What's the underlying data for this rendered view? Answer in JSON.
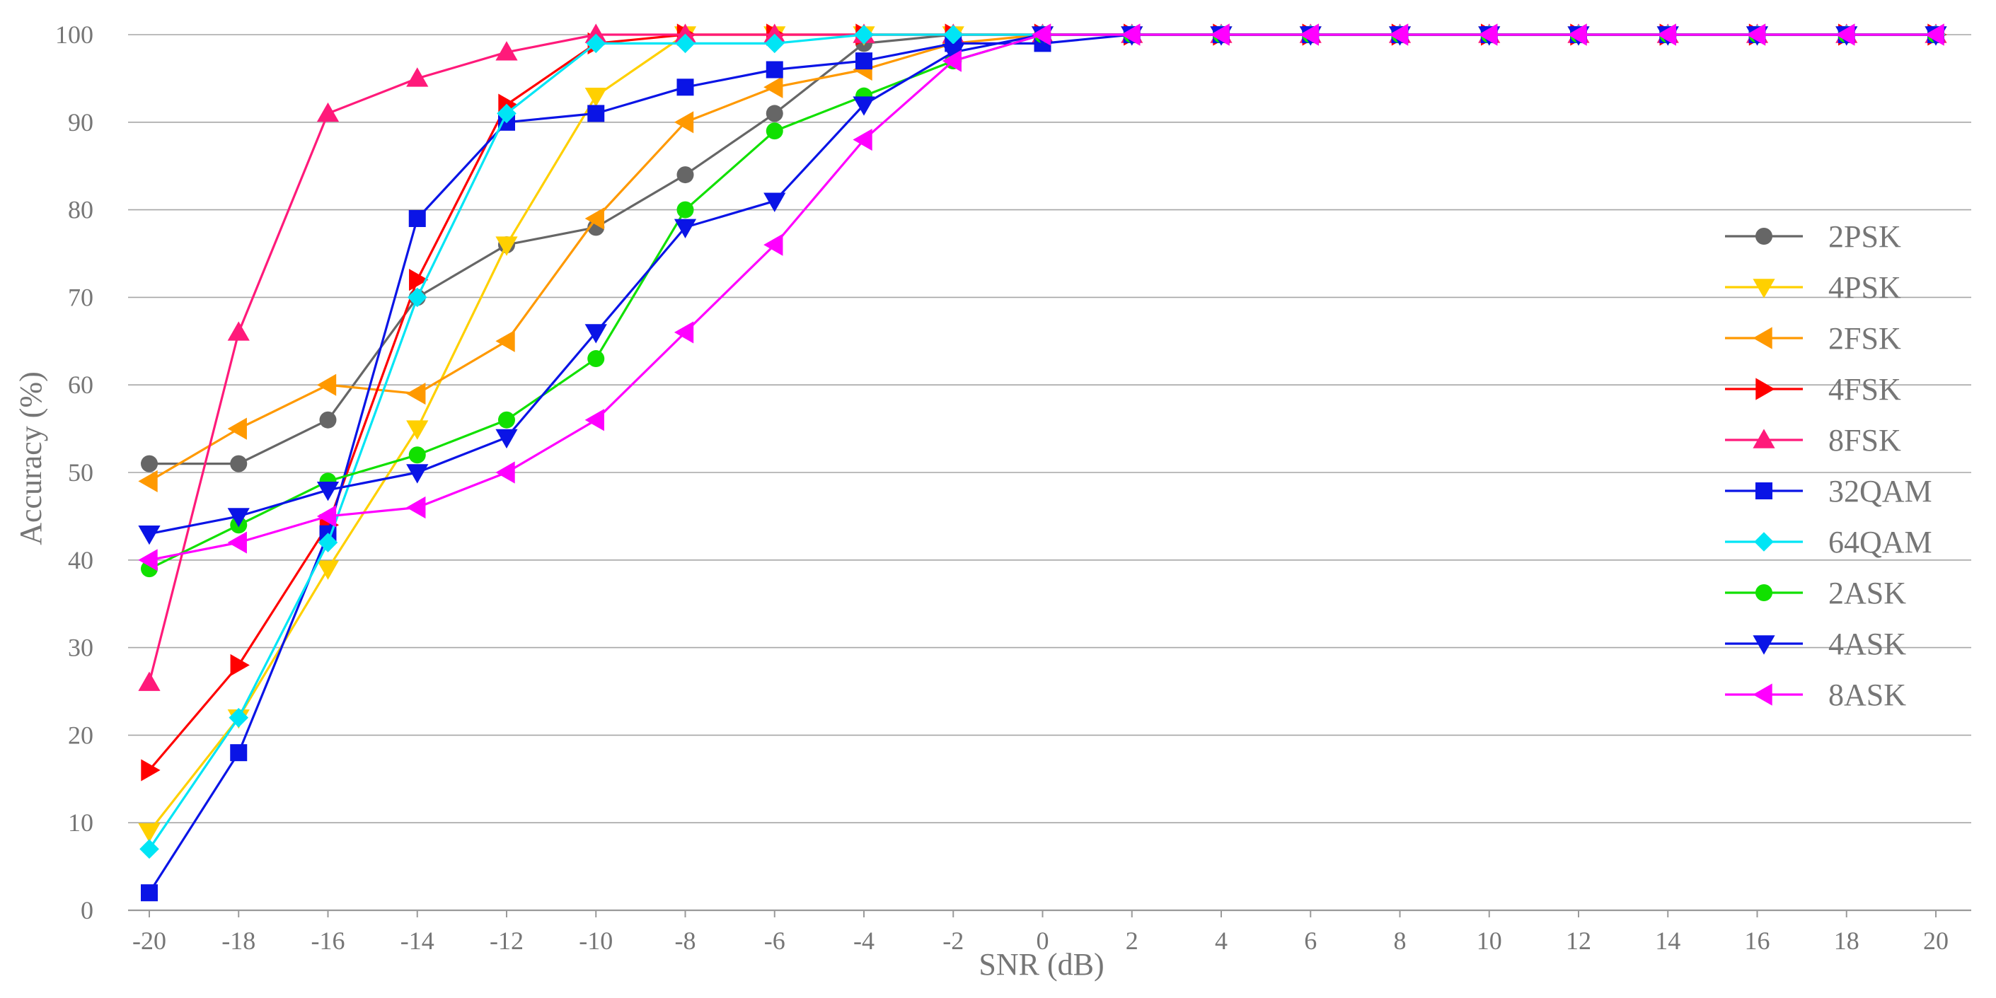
{
  "chart_data": {
    "type": "line",
    "xlabel": "SNR (dB)",
    "ylabel": "Accuracy (%)",
    "x": [
      -20,
      -18,
      -16,
      -14,
      -12,
      -10,
      -8,
      -6,
      -4,
      -2,
      0,
      2,
      4,
      6,
      8,
      10,
      12,
      14,
      16,
      18,
      20
    ],
    "xticks": [
      "-20",
      "-18",
      "-16",
      "-14",
      "-12",
      "-10",
      "-8",
      "-6",
      "-4",
      "-2",
      "0",
      "2",
      "4",
      "6",
      "8",
      "10",
      "12",
      "14",
      "16",
      "18",
      "20"
    ],
    "yticks": [
      "0",
      "10",
      "20",
      "30",
      "40",
      "50",
      "60",
      "70",
      "80",
      "90",
      "100"
    ],
    "xlim": [
      -20,
      20
    ],
    "ylim": [
      0,
      100
    ],
    "grid": "horizontal",
    "legend_position": "right",
    "series": [
      {
        "name": "2PSK",
        "color": "#666666",
        "marker": "circle",
        "values": [
          51,
          51,
          56,
          70,
          76,
          78,
          84,
          91,
          99,
          100,
          100,
          100,
          100,
          100,
          100,
          100,
          100,
          100,
          100,
          100,
          100
        ]
      },
      {
        "name": "4PSK",
        "color": "#FFD000",
        "marker": "triangle-down",
        "values": [
          9,
          22,
          39,
          55,
          76,
          93,
          100,
          100,
          100,
          100,
          100,
          100,
          100,
          100,
          100,
          100,
          100,
          100,
          100,
          100,
          100
        ]
      },
      {
        "name": "2FSK",
        "color": "#FF9900",
        "marker": "triangle-left",
        "values": [
          49,
          55,
          60,
          59,
          65,
          79,
          90,
          94,
          96,
          99,
          100,
          100,
          100,
          100,
          100,
          100,
          100,
          100,
          100,
          100,
          100
        ]
      },
      {
        "name": "4FSK",
        "color": "#FF0000",
        "marker": "triangle-right",
        "values": [
          16,
          28,
          44,
          72,
          92,
          99,
          100,
          100,
          100,
          100,
          100,
          100,
          100,
          100,
          100,
          100,
          100,
          100,
          100,
          100,
          100
        ]
      },
      {
        "name": "8FSK",
        "color": "#FF1A7A",
        "marker": "triangle-up",
        "values": [
          26,
          66,
          91,
          95,
          98,
          100,
          100,
          100,
          100,
          100,
          100,
          100,
          100,
          100,
          100,
          100,
          100,
          100,
          100,
          100,
          100
        ]
      },
      {
        "name": "32QAM",
        "color": "#0A14E6",
        "marker": "square",
        "values": [
          2,
          18,
          43,
          79,
          90,
          91,
          94,
          96,
          97,
          99,
          99,
          100,
          100,
          100,
          100,
          100,
          100,
          100,
          100,
          100,
          100
        ]
      },
      {
        "name": "64QAM",
        "color": "#00E5F5",
        "marker": "diamond",
        "values": [
          7,
          22,
          42,
          70,
          91,
          99,
          99,
          99,
          100,
          100,
          100,
          100,
          100,
          100,
          100,
          100,
          100,
          100,
          100,
          100,
          100
        ]
      },
      {
        "name": "2ASK",
        "color": "#11E000",
        "marker": "circle",
        "values": [
          39,
          44,
          49,
          52,
          56,
          63,
          80,
          89,
          93,
          97,
          100,
          100,
          100,
          100,
          100,
          100,
          100,
          100,
          100,
          100,
          100
        ]
      },
      {
        "name": "4ASK",
        "color": "#0A14E6",
        "marker": "triangle-down",
        "values": [
          43,
          45,
          48,
          50,
          54,
          66,
          78,
          81,
          92,
          98,
          100,
          100,
          100,
          100,
          100,
          100,
          100,
          100,
          100,
          100,
          100
        ]
      },
      {
        "name": "8ASK",
        "color": "#FF00FF",
        "marker": "triangle-left",
        "values": [
          40,
          42,
          45,
          46,
          50,
          56,
          66,
          76,
          88,
          97,
          100,
          100,
          100,
          100,
          100,
          100,
          100,
          100,
          100,
          100,
          100
        ]
      }
    ]
  }
}
